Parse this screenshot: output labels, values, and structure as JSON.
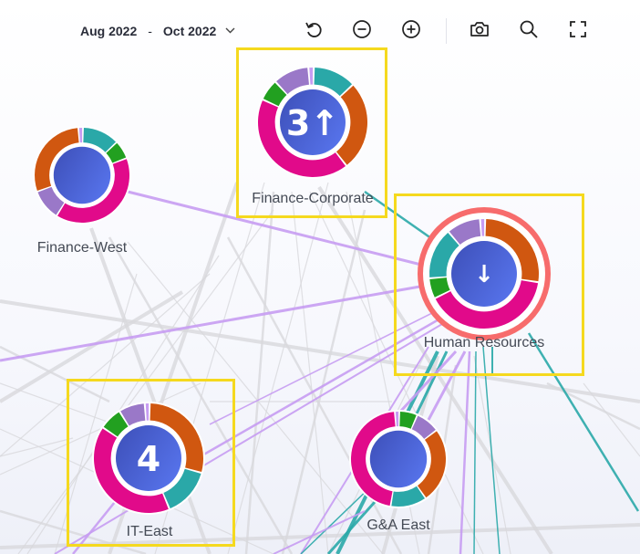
{
  "toolbar": {
    "date_start": "Aug 2022",
    "date_separator": "-",
    "date_end": "Oct 2022",
    "buttons": [
      {
        "id": "undo",
        "icon": "undo-icon"
      },
      {
        "id": "zoom-out",
        "icon": "zoom-out-icon"
      },
      {
        "id": "zoom-in",
        "icon": "zoom-in-icon"
      },
      {
        "id": "screenshot",
        "icon": "camera-icon"
      },
      {
        "id": "search",
        "icon": "search-icon"
      },
      {
        "id": "fullscreen",
        "icon": "fullscreen-icon"
      }
    ]
  },
  "colors": {
    "teal": "#2aa8a8",
    "orange": "#d05710",
    "magenta": "#e10a8a",
    "green": "#22a020",
    "purple": "#9a78c8",
    "light_purple": "#c79cf2",
    "highlight": "#f5d91e",
    "alert_ring": "#f76c6c",
    "node_center_start": "#3d4fb8",
    "node_center_end": "#5571e8"
  },
  "nodes": [
    {
      "id": "finance-west",
      "label": "Finance-West",
      "badge": "",
      "highlighted": false,
      "alert": false,
      "segments": [
        {
          "color": "teal",
          "value": 12
        },
        {
          "color": "green",
          "value": 6
        },
        {
          "color": "magenta",
          "value": 38
        },
        {
          "color": "purple",
          "value": 10
        },
        {
          "color": "orange",
          "value": 28
        },
        {
          "color": "light_purple",
          "value": 1.5
        }
      ]
    },
    {
      "id": "finance-corporate",
      "label": "Finance-Corporate",
      "badge": "3↑",
      "highlighted": true,
      "alert": false,
      "segments": [
        {
          "color": "teal",
          "value": 12
        },
        {
          "color": "orange",
          "value": 25
        },
        {
          "color": "magenta",
          "value": 40
        },
        {
          "color": "green",
          "value": 6
        },
        {
          "color": "purple",
          "value": 10
        },
        {
          "color": "light_purple",
          "value": 1.5
        }
      ]
    },
    {
      "id": "human-resources",
      "label": "Human Resources",
      "badge": "↓",
      "highlighted": true,
      "alert": true,
      "segments": [
        {
          "color": "orange",
          "value": 27
        },
        {
          "color": "magenta",
          "value": 40
        },
        {
          "color": "green",
          "value": 6
        },
        {
          "color": "teal",
          "value": 15
        },
        {
          "color": "purple",
          "value": 10
        },
        {
          "color": "light_purple",
          "value": 1.5
        }
      ]
    },
    {
      "id": "it-east",
      "label": "IT-East",
      "badge": "4",
      "highlighted": true,
      "alert": false,
      "segments": [
        {
          "color": "orange",
          "value": 30
        },
        {
          "color": "teal",
          "value": 15
        },
        {
          "color": "magenta",
          "value": 42
        },
        {
          "color": "green",
          "value": 7
        },
        {
          "color": "purple",
          "value": 8
        },
        {
          "color": "light_purple",
          "value": 1.5
        }
      ]
    },
    {
      "id": "ga-east",
      "label": "G&A East",
      "badge": "",
      "highlighted": false,
      "alert": false,
      "segments": [
        {
          "color": "green",
          "value": 6
        },
        {
          "color": "purple",
          "value": 8
        },
        {
          "color": "orange",
          "value": 25
        },
        {
          "color": "teal",
          "value": 12
        },
        {
          "color": "magenta",
          "value": 45
        },
        {
          "color": "light_purple",
          "value": 1.5
        }
      ]
    }
  ]
}
